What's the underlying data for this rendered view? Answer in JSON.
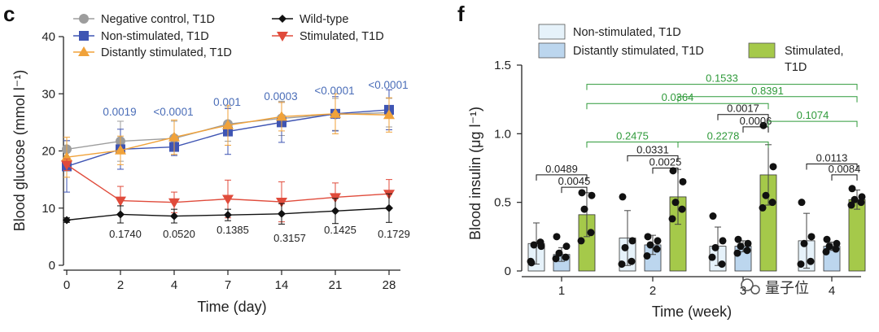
{
  "panels": {
    "c": {
      "label": "c"
    },
    "f": {
      "label": "f"
    }
  },
  "colors": {
    "negative": "#9d9d9d",
    "nonstim": "#3f55b3",
    "distant": "#f0a23a",
    "wildtype": "#111111",
    "stimulated": "#e04b3b",
    "bar_nonstim": "#e6f2fa",
    "bar_distant": "#bcd6ee",
    "bar_stim": "#a5c94a",
    "green_text": "#2f9a3a",
    "blue_text": "#4a6db8"
  },
  "chart_data": [
    {
      "type": "line",
      "id": "c",
      "xlabel": "Time (day)",
      "ylabel": "Blood glucose (mmol l⁻¹)",
      "categories": [
        "0",
        "2",
        "4",
        "7",
        "14",
        "21",
        "28"
      ],
      "ylim": [
        0,
        40
      ],
      "yticks": [
        "0",
        "10",
        "20",
        "30",
        "40"
      ],
      "series": [
        {
          "name": "Negative control, T1D",
          "marker": "circle",
          "color_key": "negative",
          "values": [
            20.3,
            21.7,
            22.2,
            24.7,
            25.7,
            26.4,
            26.7
          ],
          "err": [
            1.5,
            3.5,
            3.0,
            3.0,
            3.0,
            2.8,
            2.5
          ]
        },
        {
          "name": "Non-stimulated, T1D",
          "marker": "square",
          "color_key": "nonstim",
          "values": [
            17.3,
            20.3,
            20.7,
            23.4,
            25.0,
            26.5,
            27.2
          ],
          "err": [
            4.5,
            3.5,
            1.5,
            4.0,
            3.5,
            3.0,
            3.5
          ]
        },
        {
          "name": "Distantly stimulated, T1D",
          "marker": "triangle-up",
          "color_key": "distant",
          "values": [
            18.9,
            20.1,
            22.4,
            24.5,
            26.0,
            26.5,
            26.3
          ],
          "err": [
            3.5,
            2.5,
            3.0,
            3.5,
            2.5,
            3.5,
            3.0
          ]
        },
        {
          "name": "Wild-type",
          "marker": "diamond",
          "color_key": "wildtype",
          "values": [
            7.9,
            8.9,
            8.6,
            8.8,
            9.0,
            9.5,
            10.0
          ],
          "err": [
            0.4,
            1.5,
            1.2,
            1.0,
            1.8,
            2.2,
            2.5
          ]
        },
        {
          "name": "Stimulated, T1D",
          "marker": "triangle-down",
          "color_key": "stimulated",
          "values": [
            17.6,
            11.3,
            11.0,
            11.6,
            11.1,
            11.9,
            12.5
          ],
          "err": [
            1.0,
            2.5,
            1.8,
            3.3,
            3.5,
            2.5,
            2.5
          ]
        }
      ],
      "pvalues_top": [
        "",
        "0.0019",
        "<0.0001",
        "0.001",
        "0.0003",
        "<0.0001",
        "<0.0001"
      ],
      "pvalues_bottom": [
        "",
        "0.1740",
        "0.0520",
        "0.1385",
        "0.3157",
        "0.1425",
        "0.1729"
      ]
    },
    {
      "type": "bar",
      "id": "f",
      "xlabel": "Time (week)",
      "ylabel": "Blood insulin (μg l⁻¹)",
      "categories": [
        "1",
        "2",
        "3",
        "4"
      ],
      "ylim": [
        0,
        1.5
      ],
      "yticks": [
        "0",
        "0.5",
        "1.0",
        "1.5"
      ],
      "series": [
        {
          "name": "Non-stimulated, T1D",
          "color_key": "bar_nonstim",
          "values": [
            0.2,
            0.24,
            0.18,
            0.22
          ],
          "err": [
            0.15,
            0.2,
            0.14,
            0.2
          ],
          "points": [
            [
              0.06,
              0.18,
              0.19,
              0.21,
              0.07
            ],
            [
              0.54,
              0.22,
              0.17,
              0.07,
              0.05
            ],
            [
              0.4,
              0.22,
              0.17,
              0.05,
              0.1
            ],
            [
              0.5,
              0.25,
              0.2,
              0.07,
              0.05
            ]
          ]
        },
        {
          "name": "Distantly stimulated, T1D",
          "color_key": "bar_distant",
          "values": [
            0.12,
            0.19,
            0.18,
            0.18
          ],
          "err": [
            0.05,
            0.07,
            0.04,
            0.03
          ],
          "points": [
            [
              0.25,
              0.18,
              0.13,
              0.1,
              0.09
            ],
            [
              0.25,
              0.22,
              0.19,
              0.16,
              0.11
            ],
            [
              0.23,
              0.2,
              0.18,
              0.15,
              0.13
            ],
            [
              0.23,
              0.2,
              0.18,
              0.16,
              0.14
            ]
          ]
        },
        {
          "name": "Stimulated, T1D",
          "color_key": "bar_stim",
          "values": [
            0.41,
            0.54,
            0.7,
            0.52
          ],
          "err": [
            0.16,
            0.2,
            0.22,
            0.07
          ],
          "points": [
            [
              0.57,
              0.55,
              0.45,
              0.28,
              0.22
            ],
            [
              0.73,
              0.65,
              0.5,
              0.45,
              0.38
            ],
            [
              1.06,
              0.76,
              0.55,
              0.5,
              0.46
            ],
            [
              0.6,
              0.54,
              0.52,
              0.5,
              0.48
            ]
          ]
        }
      ],
      "brackets": [
        {
          "label": "0.0489",
          "from": [
            0,
            0
          ],
          "to": [
            0,
            2
          ],
          "level": 0.7,
          "color_key": "wildtype"
        },
        {
          "label": "0.0045",
          "from": [
            0,
            1
          ],
          "to": [
            0,
            2
          ],
          "level": 0.61,
          "color_key": "wildtype"
        },
        {
          "label": "0.0331",
          "from": [
            1,
            0
          ],
          "to": [
            1,
            2
          ],
          "level": 0.84,
          "color_key": "wildtype"
        },
        {
          "label": "0.0025",
          "from": [
            1,
            1
          ],
          "to": [
            1,
            2
          ],
          "level": 0.75,
          "color_key": "wildtype"
        },
        {
          "label": "0.0017",
          "from": [
            2,
            0
          ],
          "to": [
            2,
            2
          ],
          "level": 1.14,
          "color_key": "wildtype"
        },
        {
          "label": "0.0006",
          "from": [
            2,
            1
          ],
          "to": [
            2,
            2
          ],
          "level": 1.05,
          "color_key": "wildtype"
        },
        {
          "label": "0.0113",
          "from": [
            3,
            0
          ],
          "to": [
            3,
            2
          ],
          "level": 0.78,
          "color_key": "wildtype"
        },
        {
          "label": "0.0084",
          "from": [
            3,
            1
          ],
          "to": [
            3,
            2
          ],
          "level": 0.7,
          "color_key": "wildtype"
        },
        {
          "label": "0.2475",
          "from": [
            0,
            2
          ],
          "to": [
            1,
            2
          ],
          "level": 0.94,
          "color_key": "green_text"
        },
        {
          "label": "0.2278",
          "from": [
            1,
            2
          ],
          "to": [
            2,
            2
          ],
          "level": 0.94,
          "color_key": "green_text"
        },
        {
          "label": "0.1074",
          "from": [
            2,
            2
          ],
          "to": [
            3,
            2
          ],
          "level": 1.09,
          "color_key": "green_text"
        },
        {
          "label": "0.0364",
          "from": [
            0,
            2
          ],
          "to": [
            2,
            2
          ],
          "level": 1.22,
          "color_key": "green_text"
        },
        {
          "label": "0.8391",
          "from": [
            1,
            2
          ],
          "to": [
            3,
            2
          ],
          "level": 1.27,
          "color_key": "green_text"
        },
        {
          "label": "0.1533",
          "from": [
            0,
            2
          ],
          "to": [
            3,
            2
          ],
          "level": 1.36,
          "color_key": "green_text"
        }
      ]
    }
  ],
  "watermark": {
    "text": "量子位"
  }
}
